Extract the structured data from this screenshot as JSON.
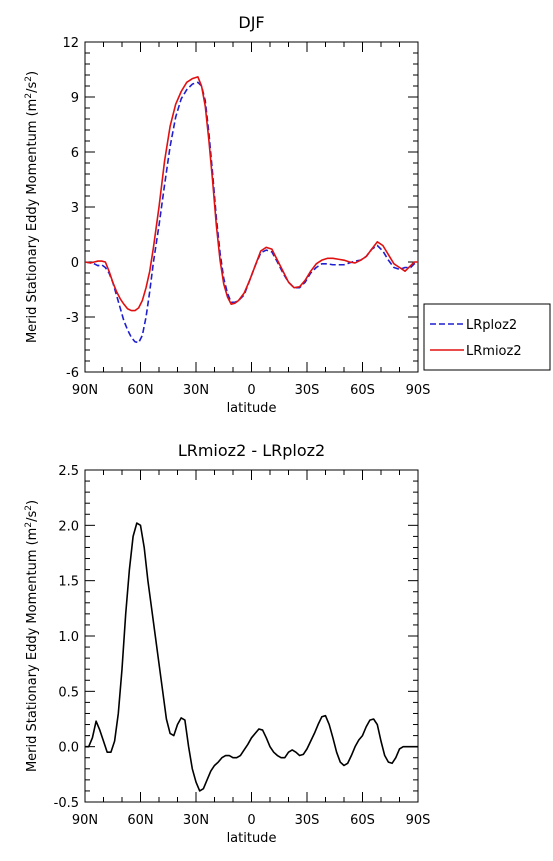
{
  "chart_data": [
    {
      "type": "line",
      "title": "DJF",
      "xlabel": "latitude",
      "ylabel": "Merid Stationary Eddy Momentum (m",
      "ylabel_sup": "2",
      "ylabel_mid": "/s",
      "ylabel_sup2": "2",
      "ylabel_end": ")",
      "xlim": [
        90,
        -90
      ],
      "ylim": [
        -6,
        12
      ],
      "xticks": [
        90,
        60,
        30,
        0,
        -30,
        -60,
        -90
      ],
      "xticklabels": [
        "90N",
        "60N",
        "30N",
        "0",
        "30S",
        "60S",
        "90S"
      ],
      "yticks": [
        -6,
        -3,
        0,
        3,
        6,
        9,
        12
      ],
      "yticklabels": [
        "-6",
        "-3",
        "0",
        "3",
        "6",
        "9",
        "12"
      ],
      "legend": "outside-right",
      "series": [
        {
          "name": "LRploz2",
          "color": "#1f1fd0",
          "dash": "dashed",
          "x": [
            90,
            87,
            85,
            83,
            81,
            79,
            77,
            75,
            73,
            71,
            69,
            67,
            65,
            63,
            61,
            59,
            57,
            55,
            53,
            50,
            47,
            44,
            41,
            38,
            35,
            32,
            29,
            27,
            25,
            23,
            21,
            19,
            17,
            15,
            13,
            11,
            9,
            7,
            4,
            1,
            -2,
            -5,
            -8,
            -11,
            -14,
            -17,
            -20,
            -23,
            -26,
            -29,
            -32,
            -35,
            -38,
            -41,
            -44,
            -47,
            -50,
            -53,
            -56,
            -59,
            -62,
            -65,
            -68,
            -71,
            -74,
            -77,
            -80,
            -83,
            -86,
            -88,
            -90
          ],
          "y": [
            0.0,
            -0.05,
            -0.1,
            -0.2,
            -0.15,
            -0.3,
            -0.6,
            -1.1,
            -1.8,
            -2.5,
            -3.2,
            -3.7,
            -4.1,
            -4.35,
            -4.4,
            -4.0,
            -3.0,
            -1.6,
            0.0,
            2.0,
            4.2,
            6.3,
            7.9,
            8.9,
            9.4,
            9.7,
            9.8,
            9.6,
            8.8,
            7.0,
            4.8,
            2.4,
            0.5,
            -0.9,
            -1.7,
            -2.2,
            -2.2,
            -2.1,
            -1.8,
            -1.0,
            -0.2,
            0.5,
            0.65,
            0.55,
            0.0,
            -0.6,
            -1.1,
            -1.4,
            -1.4,
            -1.1,
            -0.6,
            -0.3,
            -0.1,
            -0.1,
            -0.15,
            -0.15,
            -0.15,
            -0.05,
            0.05,
            0.1,
            0.3,
            0.7,
            0.9,
            0.6,
            0.1,
            -0.3,
            -0.4,
            -0.3,
            -0.3,
            -0.1,
            0.0
          ]
        },
        {
          "name": "LRmioz2",
          "color": "#e01010",
          "dash": "solid",
          "x": [
            90,
            87,
            85,
            83,
            81,
            79,
            77,
            75,
            73,
            71,
            69,
            67,
            65,
            63,
            61,
            59,
            57,
            55,
            53,
            50,
            47,
            44,
            41,
            38,
            35,
            32,
            29,
            27,
            25,
            23,
            21,
            19,
            17,
            15,
            13,
            11,
            9,
            7,
            4,
            1,
            -2,
            -5,
            -8,
            -11,
            -14,
            -17,
            -20,
            -23,
            -26,
            -29,
            -32,
            -35,
            -38,
            -41,
            -44,
            -47,
            -50,
            -53,
            -56,
            -59,
            -62,
            -65,
            -68,
            -71,
            -74,
            -77,
            -80,
            -83,
            -86,
            -88,
            -90
          ],
          "y": [
            0.0,
            -0.05,
            0.0,
            0.05,
            0.05,
            0.0,
            -0.5,
            -1.1,
            -1.6,
            -2.0,
            -2.3,
            -2.55,
            -2.65,
            -2.65,
            -2.5,
            -2.1,
            -1.4,
            -0.5,
            0.8,
            3.0,
            5.5,
            7.4,
            8.6,
            9.3,
            9.8,
            10.0,
            10.1,
            9.6,
            8.5,
            6.6,
            4.4,
            2.0,
            0.1,
            -1.2,
            -1.9,
            -2.3,
            -2.25,
            -2.1,
            -1.7,
            -1.0,
            -0.2,
            0.6,
            0.8,
            0.7,
            0.1,
            -0.5,
            -1.1,
            -1.4,
            -1.35,
            -1.0,
            -0.5,
            -0.1,
            0.1,
            0.2,
            0.2,
            0.15,
            0.1,
            0.0,
            -0.05,
            0.1,
            0.3,
            0.7,
            1.1,
            0.9,
            0.4,
            -0.1,
            -0.3,
            -0.5,
            -0.2,
            0.0,
            0.0
          ]
        }
      ]
    },
    {
      "type": "line",
      "title": "LRmioz2 - LRploz2",
      "xlabel": "latitude",
      "ylabel": "Merid Stationary Eddy Momentum (m",
      "ylabel_sup": "2",
      "ylabel_mid": "/s",
      "ylabel_sup2": "2",
      "ylabel_end": ")",
      "xlim": [
        90,
        -90
      ],
      "ylim": [
        -0.5,
        2.5
      ],
      "xticks": [
        90,
        60,
        30,
        0,
        -30,
        -60,
        -90
      ],
      "xticklabels": [
        "90N",
        "60N",
        "30N",
        "0",
        "30S",
        "60S",
        "90S"
      ],
      "yticks": [
        -0.5,
        0,
        0.5,
        1.0,
        1.5,
        2.0,
        2.5
      ],
      "yticklabels": [
        "-0.5",
        "0.0",
        "0.5",
        "1.0",
        "1.5",
        "2.0",
        "2.5"
      ],
      "series": [
        {
          "color": "#000000",
          "dash": "solid",
          "x": [
            90,
            88,
            86,
            84,
            82,
            80,
            78,
            76,
            74,
            72,
            70,
            68,
            66,
            64,
            62,
            60,
            58,
            56,
            54,
            52,
            50,
            48,
            46,
            44,
            42,
            40,
            38,
            36,
            34,
            32,
            30,
            28,
            26,
            24,
            22,
            20,
            18,
            16,
            14,
            12,
            10,
            8,
            6,
            4,
            2,
            0,
            -2,
            -4,
            -6,
            -8,
            -10,
            -12,
            -14,
            -16,
            -18,
            -20,
            -22,
            -24,
            -26,
            -28,
            -30,
            -32,
            -34,
            -36,
            -38,
            -40,
            -42,
            -44,
            -46,
            -48,
            -50,
            -52,
            -54,
            -56,
            -58,
            -60,
            -62,
            -64,
            -66,
            -68,
            -70,
            -72,
            -74,
            -76,
            -78,
            -80,
            -82,
            -84,
            -86,
            -88,
            -90
          ],
          "y": [
            0.0,
            0.0,
            0.08,
            0.23,
            0.15,
            0.05,
            -0.05,
            -0.05,
            0.05,
            0.3,
            0.7,
            1.2,
            1.6,
            1.9,
            2.02,
            2.0,
            1.8,
            1.5,
            1.25,
            1.0,
            0.75,
            0.5,
            0.25,
            0.12,
            0.1,
            0.2,
            0.26,
            0.24,
            0.0,
            -0.2,
            -0.32,
            -0.4,
            -0.38,
            -0.3,
            -0.22,
            -0.17,
            -0.14,
            -0.1,
            -0.08,
            -0.08,
            -0.1,
            -0.1,
            -0.08,
            -0.03,
            0.02,
            0.08,
            0.12,
            0.16,
            0.15,
            0.08,
            0.0,
            -0.05,
            -0.08,
            -0.1,
            -0.1,
            -0.05,
            -0.03,
            -0.05,
            -0.08,
            -0.07,
            -0.02,
            0.05,
            0.12,
            0.2,
            0.27,
            0.28,
            0.2,
            0.08,
            -0.05,
            -0.14,
            -0.17,
            -0.15,
            -0.08,
            0.0,
            0.06,
            0.1,
            0.18,
            0.24,
            0.25,
            0.2,
            0.05,
            -0.08,
            -0.14,
            -0.15,
            -0.1,
            -0.02,
            0.0,
            0.0,
            0.0,
            0.0,
            0.0
          ]
        }
      ]
    }
  ]
}
